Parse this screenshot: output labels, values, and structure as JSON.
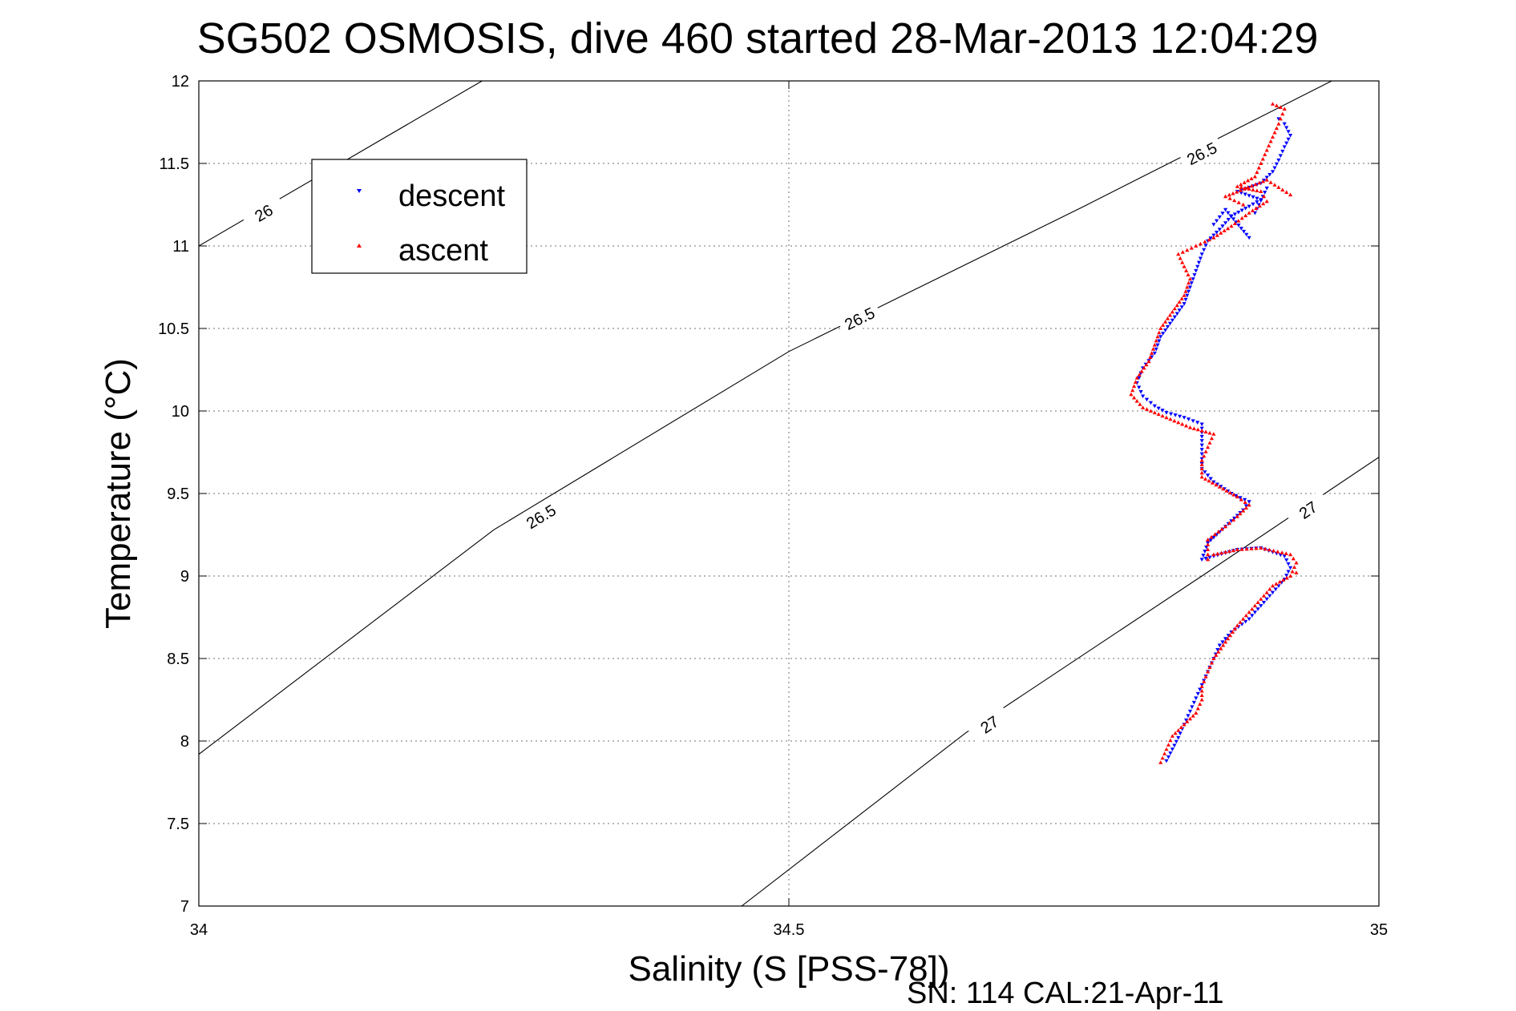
{
  "chart_data": {
    "type": "scatter",
    "title": "SG502 OSMOSIS, dive 460 started 28-Mar-2013 12:04:29",
    "xlabel": "Salinity (S [PSS-78])",
    "ylabel": "Temperature (°C)",
    "footer": "SN: 114  CAL:21-Apr-11",
    "xlim": [
      34,
      35
    ],
    "ylim": [
      7,
      12
    ],
    "xticks": [
      "34",
      "34.5",
      "35"
    ],
    "yticks": [
      "7",
      "7.5",
      "8",
      "8.5",
      "9",
      "9.5",
      "10",
      "10.5",
      "11",
      "11.5",
      "12"
    ],
    "grid": true,
    "legend_position": "top-left",
    "density_contours": [
      {
        "label": "26",
        "points": [
          [
            34.0,
            11.0
          ],
          [
            34.24,
            12.0
          ]
        ],
        "label_positions": [
          [
            34.055,
            11.2
          ]
        ]
      },
      {
        "label": "26.5",
        "points": [
          [
            34.0,
            7.92
          ],
          [
            34.25,
            9.28
          ],
          [
            34.5,
            10.36
          ],
          [
            34.75,
            11.24
          ],
          [
            34.96,
            12.0
          ]
        ],
        "label_positions": [
          [
            34.29,
            9.36
          ],
          [
            34.56,
            10.56
          ],
          [
            34.85,
            11.56
          ]
        ]
      },
      {
        "label": "27",
        "points": [
          [
            34.46,
            7.0
          ],
          [
            34.65,
            8.05
          ],
          [
            34.85,
            9.0
          ],
          [
            35.0,
            9.72
          ]
        ],
        "label_positions": [
          [
            34.67,
            8.1
          ],
          [
            34.94,
            9.4
          ]
        ]
      }
    ],
    "series": [
      {
        "name": "descent",
        "color": "#0000ff",
        "marker": "triangle-down",
        "points": [
          [
            34.82,
            7.88
          ],
          [
            34.825,
            7.95
          ],
          [
            34.83,
            8.02
          ],
          [
            34.835,
            8.1
          ],
          [
            34.84,
            8.18
          ],
          [
            34.845,
            8.26
          ],
          [
            34.85,
            8.34
          ],
          [
            34.855,
            8.42
          ],
          [
            34.86,
            8.5
          ],
          [
            34.865,
            8.58
          ],
          [
            34.875,
            8.66
          ],
          [
            34.89,
            8.74
          ],
          [
            34.9,
            8.82
          ],
          [
            34.91,
            8.9
          ],
          [
            34.92,
            8.98
          ],
          [
            34.925,
            9.05
          ],
          [
            34.92,
            9.12
          ],
          [
            34.9,
            9.17
          ],
          [
            34.88,
            9.16
          ],
          [
            34.86,
            9.12
          ],
          [
            34.85,
            9.1
          ],
          [
            34.855,
            9.2
          ],
          [
            34.87,
            9.3
          ],
          [
            34.885,
            9.4
          ],
          [
            34.89,
            9.45
          ],
          [
            34.875,
            9.5
          ],
          [
            34.86,
            9.57
          ],
          [
            34.85,
            9.65
          ],
          [
            34.85,
            9.74
          ],
          [
            34.85,
            9.82
          ],
          [
            34.85,
            9.92
          ],
          [
            34.835,
            9.96
          ],
          [
            34.82,
            9.99
          ],
          [
            34.81,
            10.03
          ],
          [
            34.8,
            10.09
          ],
          [
            34.795,
            10.17
          ],
          [
            34.8,
            10.26
          ],
          [
            34.81,
            10.35
          ],
          [
            34.815,
            10.45
          ],
          [
            34.825,
            10.55
          ],
          [
            34.835,
            10.65
          ],
          [
            34.84,
            10.75
          ],
          [
            34.845,
            10.85
          ],
          [
            34.85,
            10.95
          ],
          [
            34.855,
            11.03
          ],
          [
            34.865,
            11.1
          ],
          [
            34.875,
            11.18
          ],
          [
            34.89,
            11.24
          ],
          [
            34.9,
            11.28
          ],
          [
            34.88,
            11.33
          ],
          [
            34.9,
            11.38
          ],
          [
            34.91,
            11.45
          ],
          [
            34.915,
            11.52
          ],
          [
            34.92,
            11.6
          ],
          [
            34.925,
            11.67
          ],
          [
            34.92,
            11.74
          ],
          [
            34.915,
            11.77
          ],
          [
            34.86,
            11.13
          ],
          [
            34.87,
            11.22
          ],
          [
            34.89,
            11.05
          ],
          [
            34.905,
            11.35
          ],
          [
            34.895,
            11.2
          ]
        ]
      },
      {
        "name": "ascent",
        "color": "#ff0000",
        "marker": "triangle-up",
        "points": [
          [
            34.815,
            7.87
          ],
          [
            34.82,
            7.95
          ],
          [
            34.825,
            8.03
          ],
          [
            34.835,
            8.1
          ],
          [
            34.845,
            8.17
          ],
          [
            34.85,
            8.25
          ],
          [
            34.85,
            8.33
          ],
          [
            34.855,
            8.42
          ],
          [
            34.86,
            8.5
          ],
          [
            34.87,
            8.6
          ],
          [
            34.88,
            8.7
          ],
          [
            34.89,
            8.78
          ],
          [
            34.9,
            8.86
          ],
          [
            34.91,
            8.94
          ],
          [
            34.925,
            9.0
          ],
          [
            34.93,
            9.08
          ],
          [
            34.925,
            9.13
          ],
          [
            34.9,
            9.17
          ],
          [
            34.88,
            9.16
          ],
          [
            34.86,
            9.13
          ],
          [
            34.855,
            9.1
          ],
          [
            34.855,
            9.22
          ],
          [
            34.87,
            9.3
          ],
          [
            34.88,
            9.36
          ],
          [
            34.89,
            9.43
          ],
          [
            34.88,
            9.48
          ],
          [
            34.865,
            9.54
          ],
          [
            34.85,
            9.6
          ],
          [
            34.85,
            9.7
          ],
          [
            34.855,
            9.78
          ],
          [
            34.86,
            9.86
          ],
          [
            34.84,
            9.9
          ],
          [
            34.82,
            9.96
          ],
          [
            34.8,
            10.02
          ],
          [
            34.79,
            10.1
          ],
          [
            34.795,
            10.2
          ],
          [
            34.805,
            10.3
          ],
          [
            34.81,
            10.4
          ],
          [
            34.815,
            10.5
          ],
          [
            34.825,
            10.6
          ],
          [
            34.835,
            10.7
          ],
          [
            34.84,
            10.8
          ],
          [
            34.83,
            10.95
          ],
          [
            34.845,
            11.0
          ],
          [
            34.86,
            11.05
          ],
          [
            34.875,
            11.12
          ],
          [
            34.89,
            11.2
          ],
          [
            34.905,
            11.27
          ],
          [
            34.9,
            11.33
          ],
          [
            34.88,
            11.36
          ],
          [
            34.895,
            11.42
          ],
          [
            34.9,
            11.5
          ],
          [
            34.905,
            11.58
          ],
          [
            34.91,
            11.66
          ],
          [
            34.915,
            11.74
          ],
          [
            34.92,
            11.83
          ],
          [
            34.91,
            11.86
          ],
          [
            34.885,
            11.25
          ],
          [
            34.87,
            11.3
          ],
          [
            34.905,
            11.4
          ],
          [
            34.925,
            11.31
          ],
          [
            34.93,
            9.02
          ]
        ]
      }
    ]
  }
}
